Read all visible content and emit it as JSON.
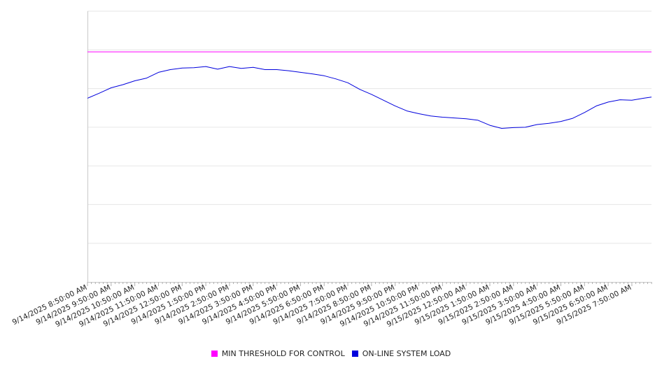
{
  "chart_data": {
    "type": "line",
    "x_start": "9/14/2025 8:50:00 AM",
    "x_tick_labels": [
      "9/14/2025 8:50:00 AM",
      "9/14/2025 9:50:00 AM",
      "9/14/2025 10:50:00 AM",
      "9/14/2025 11:50:00 AM",
      "9/14/2025 12:50:00 PM",
      "9/14/2025 1:50:00 PM",
      "9/14/2025 2:50:00 PM",
      "9/14/2025 3:50:00 PM",
      "9/14/2025 4:50:00 PM",
      "9/14/2025 5:50:00 PM",
      "9/14/2025 6:50:00 PM",
      "9/14/2025 7:50:00 PM",
      "9/14/2025 8:50:00 PM",
      "9/14/2025 9:50:00 PM",
      "9/14/2025 10:50:00 PM",
      "9/14/2025 11:50:00 PM",
      "9/15/2025 12:50:00 AM",
      "9/15/2025 1:50:00 AM",
      "9/15/2025 2:50:00 AM",
      "9/15/2025 3:50:00 AM",
      "9/15/2025 4:50:00 AM",
      "9/15/2025 5:50:00 AM",
      "9/15/2025 6:50:00 AM",
      "9/15/2025 7:50:00 AM"
    ],
    "x_end": "9/15/2025 8:40:00 AM",
    "ylim": [
      0,
      7
    ],
    "y_gridlines": [
      0,
      1,
      2,
      3,
      4,
      5,
      6,
      7
    ],
    "grid": true,
    "legend_position": "bottom",
    "series": [
      {
        "name": "MIN THRESHOLD FOR CONTROL",
        "color": "#ff00ff",
        "hours": [
          0,
          23.83
        ],
        "values": [
          5.95,
          5.95
        ]
      },
      {
        "name": "ON-LINE SYSTEM LOAD",
        "color": "#0000dd",
        "hours": [
          0,
          0.5,
          1,
          1.5,
          2,
          2.5,
          3,
          3.5,
          4,
          4.5,
          5,
          5.5,
          6,
          6.5,
          7,
          7.5,
          8,
          8.5,
          9,
          9.5,
          10,
          10.5,
          11,
          11.5,
          12,
          12.5,
          13,
          13.5,
          14,
          14.5,
          15,
          15.5,
          16,
          16.5,
          17,
          17.5,
          18,
          18.5,
          19,
          19.5,
          20,
          20.5,
          21,
          21.5,
          22,
          22.5,
          23,
          23.5,
          23.83
        ],
        "values": [
          4.75,
          4.88,
          5.02,
          5.1,
          5.2,
          5.27,
          5.42,
          5.49,
          5.53,
          5.54,
          5.57,
          5.5,
          5.57,
          5.52,
          5.55,
          5.49,
          5.49,
          5.46,
          5.42,
          5.38,
          5.33,
          5.25,
          5.15,
          4.98,
          4.85,
          4.7,
          4.55,
          4.42,
          4.35,
          4.29,
          4.26,
          4.24,
          4.22,
          4.18,
          4.05,
          3.97,
          3.99,
          4.0,
          4.07,
          4.1,
          4.15,
          4.23,
          4.38,
          4.55,
          4.65,
          4.71,
          4.7,
          4.75,
          4.78
        ]
      }
    ]
  },
  "legend": {
    "items": [
      {
        "label": "MIN THRESHOLD FOR CONTROL",
        "color": "#ff00ff"
      },
      {
        "label": "ON-LINE SYSTEM LOAD",
        "color": "#0000dd"
      }
    ]
  }
}
